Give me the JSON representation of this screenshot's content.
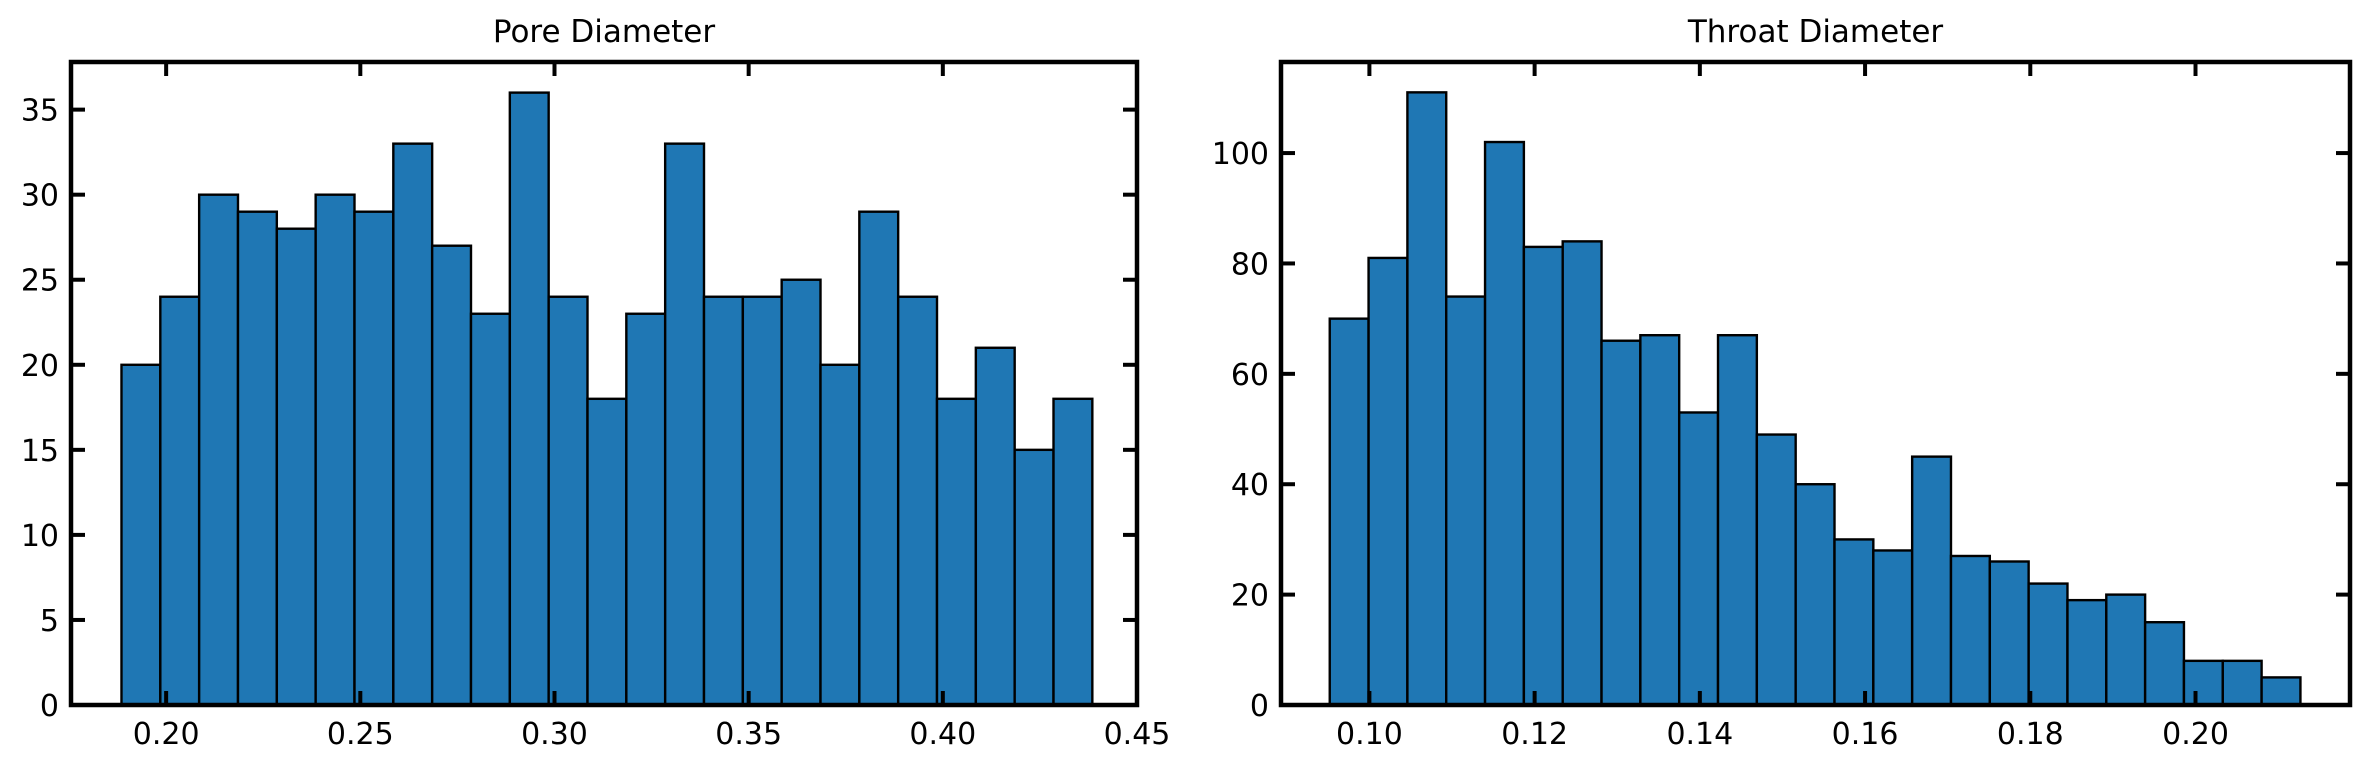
{
  "figure": {
    "background": "#ffffff"
  },
  "chart_data": [
    {
      "type": "bar",
      "title": "Pore Diameter",
      "xlabel": "",
      "ylabel": "",
      "bar_color": "#1f77b4",
      "edge_color": "#000000",
      "xlim": [
        0.1755,
        0.45
      ],
      "ylim": [
        0,
        37.8
      ],
      "xticks": [
        0.2,
        0.25,
        0.3,
        0.35,
        0.4,
        0.45
      ],
      "xtick_labels": [
        "0.20",
        "0.25",
        "0.30",
        "0.35",
        "0.40",
        "0.45"
      ],
      "yticks": [
        0,
        5,
        10,
        15,
        20,
        25,
        30,
        35
      ],
      "ytick_labels": [
        "0",
        "5",
        "10",
        "15",
        "20",
        "25",
        "30",
        "35"
      ],
      "bin_edges": [
        0.1885,
        0.1985,
        0.2085,
        0.2185,
        0.2285,
        0.2385,
        0.2485,
        0.2585,
        0.2685,
        0.2785,
        0.2885,
        0.2985,
        0.3085,
        0.3185,
        0.3285,
        0.3385,
        0.3485,
        0.3585,
        0.3685,
        0.3785,
        0.3885,
        0.3985,
        0.4085,
        0.4185,
        0.4285,
        0.4385
      ],
      "values": [
        20,
        24,
        30,
        29,
        28,
        30,
        29,
        33,
        27,
        23,
        36,
        24,
        18,
        23,
        33,
        24,
        24,
        25,
        20,
        29,
        24,
        18,
        21,
        15,
        18
      ],
      "grid": false,
      "legend": "none"
    },
    {
      "type": "bar",
      "title": "Throat Diameter",
      "xlabel": "",
      "ylabel": "",
      "bar_color": "#1f77b4",
      "edge_color": "#000000",
      "xlim": [
        0.0893,
        0.2187
      ],
      "ylim": [
        0,
        116.5
      ],
      "xticks": [
        0.1,
        0.12,
        0.14,
        0.16,
        0.18,
        0.2
      ],
      "xtick_labels": [
        "0.10",
        "0.12",
        "0.14",
        "0.16",
        "0.18",
        "0.20"
      ],
      "yticks": [
        0,
        20,
        40,
        60,
        80,
        100
      ],
      "ytick_labels": [
        "0",
        "20",
        "40",
        "60",
        "80",
        "100"
      ],
      "bin_edges": [
        0.0952,
        0.0999,
        0.1046,
        0.1093,
        0.114,
        0.1187,
        0.1234,
        0.1281,
        0.1328,
        0.1375,
        0.1422,
        0.1469,
        0.1516,
        0.1563,
        0.161,
        0.1657,
        0.1704,
        0.1751,
        0.1798,
        0.1845,
        0.1892,
        0.1939,
        0.1986,
        0.2033,
        0.208,
        0.2127
      ],
      "values": [
        70,
        81,
        111,
        74,
        102,
        83,
        84,
        66,
        67,
        53,
        67,
        49,
        40,
        30,
        28,
        45,
        27,
        26,
        22,
        19,
        20,
        15,
        8,
        8,
        5
      ],
      "grid": false,
      "legend": "none"
    }
  ]
}
